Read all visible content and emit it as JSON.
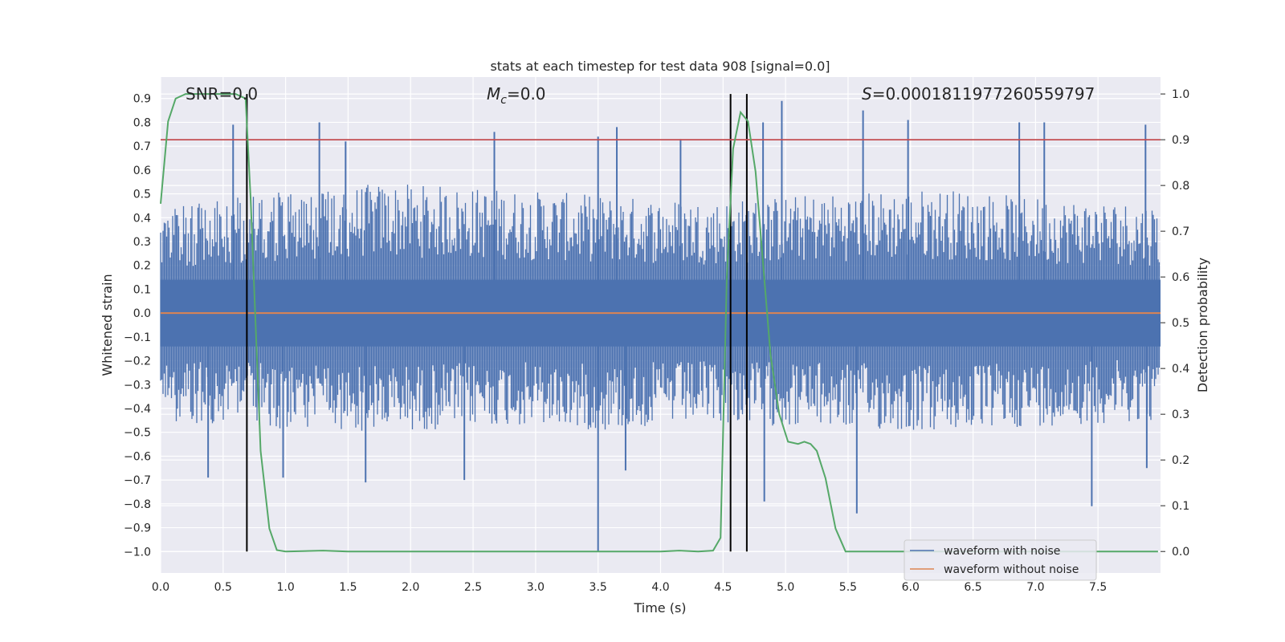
{
  "chart_data": {
    "type": "line",
    "title": "stats at each timestep for test data 908 [signal=0.0]",
    "xlabel": "Time (s)",
    "ylabel": "Whitened strain",
    "y2label": "Detection probability",
    "xlim": [
      0.0,
      8.0
    ],
    "ylim": [
      -1.09,
      0.99
    ],
    "y2lim": [
      -0.047,
      1.037
    ],
    "xticks": [
      "0.0",
      "0.5",
      "1.0",
      "1.5",
      "2.0",
      "2.5",
      "3.0",
      "3.5",
      "4.0",
      "4.5",
      "5.0",
      "5.5",
      "6.0",
      "6.5",
      "7.0",
      "7.5"
    ],
    "yticks": [
      "0.9",
      "0.8",
      "0.7",
      "0.6",
      "0.5",
      "0.4",
      "0.3",
      "0.2",
      "0.1",
      "0.0",
      "-0.1",
      "-0.2",
      "-0.3",
      "-0.4",
      "-0.5",
      "-0.6",
      "-0.7",
      "-0.8",
      "-0.9",
      "-1.0"
    ],
    "y2ticks": [
      "1.0",
      "0.9",
      "0.8",
      "0.7",
      "0.6",
      "0.5",
      "0.4",
      "0.3",
      "0.2",
      "0.1",
      "0.0"
    ],
    "grid": true,
    "legend_position": "lower-right",
    "annotations": {
      "snr": "SNR=0.0",
      "mc_symbol": "M",
      "mc_sub": "c",
      "mc_value": "=0.0",
      "s_symbol": "S",
      "s_value": "=0.0001811977260559797"
    },
    "colors": {
      "background": "#eaeaf2",
      "noise": "#4c72b0",
      "clean": "#dd8452",
      "probability": "#55a868",
      "threshold": "#c44e52",
      "markers": "#000000",
      "grid": "#ffffff"
    },
    "series": [
      {
        "name": "waveform with noise",
        "axis": "left",
        "kind": "noise",
        "band_top": [
          0.42,
          0.48,
          0.52,
          0.5,
          0.47,
          0.45,
          0.48,
          0.5,
          0.46,
          0.44
        ],
        "band_bottom": [
          -0.43,
          -0.46,
          -0.48,
          -0.45,
          -0.47,
          -0.44,
          -0.46,
          -0.48,
          -0.45,
          -0.43
        ],
        "spikes": [
          {
            "x": 0.58,
            "y": 0.79
          },
          {
            "x": 1.27,
            "y": 0.8
          },
          {
            "x": 1.48,
            "y": 0.72
          },
          {
            "x": 2.67,
            "y": 0.76
          },
          {
            "x": 3.5,
            "y": 0.74
          },
          {
            "x": 3.65,
            "y": 0.78
          },
          {
            "x": 4.16,
            "y": 0.73
          },
          {
            "x": 4.82,
            "y": 0.8
          },
          {
            "x": 4.97,
            "y": 0.89
          },
          {
            "x": 5.62,
            "y": 0.85
          },
          {
            "x": 5.98,
            "y": 0.81
          },
          {
            "x": 6.87,
            "y": 0.8
          },
          {
            "x": 7.07,
            "y": 0.8
          },
          {
            "x": 7.88,
            "y": 0.79
          },
          {
            "x": 0.38,
            "y": -0.69
          },
          {
            "x": 0.98,
            "y": -0.69
          },
          {
            "x": 1.64,
            "y": -0.71
          },
          {
            "x": 2.43,
            "y": -0.7
          },
          {
            "x": 3.5,
            "y": -1.0
          },
          {
            "x": 3.72,
            "y": -0.66
          },
          {
            "x": 4.83,
            "y": -0.79
          },
          {
            "x": 5.57,
            "y": -0.84
          },
          {
            "x": 7.45,
            "y": -0.81
          },
          {
            "x": 7.89,
            "y": -0.65
          }
        ]
      },
      {
        "name": "waveform without noise",
        "axis": "left",
        "x": [
          0.0,
          8.0
        ],
        "y": [
          0.0,
          0.0
        ]
      },
      {
        "axis": "right",
        "x": [
          0.0,
          0.06,
          0.12,
          0.2,
          0.3,
          0.4,
          0.5,
          0.6,
          0.68,
          0.72,
          0.8,
          0.87,
          0.93,
          1.0,
          1.3,
          1.5,
          2.0,
          2.5,
          3.0,
          3.5,
          4.0,
          4.15,
          4.3,
          4.42,
          4.48,
          4.53,
          4.58,
          4.64,
          4.7,
          4.76,
          4.82,
          4.88,
          4.95,
          5.02,
          5.1,
          5.15,
          5.2,
          5.25,
          5.32,
          5.4,
          5.48,
          5.6,
          7.98
        ],
        "y": [
          0.76,
          0.94,
          0.99,
          1.0,
          1.0,
          1.0,
          1.0,
          1.0,
          0.99,
          0.77,
          0.22,
          0.05,
          0.003,
          0.0,
          0.002,
          0.0,
          0.0,
          0.0,
          0.0,
          0.0,
          0.0,
          0.002,
          0.0,
          0.002,
          0.03,
          0.6,
          0.88,
          0.96,
          0.94,
          0.83,
          0.63,
          0.43,
          0.3,
          0.24,
          0.235,
          0.24,
          0.235,
          0.22,
          0.16,
          0.05,
          0.0,
          0.0,
          0.0
        ]
      },
      {
        "axis": "right",
        "kind": "threshold",
        "y": 0.9
      }
    ],
    "vertical_markers": [
      0.69,
      4.56,
      4.69
    ]
  }
}
